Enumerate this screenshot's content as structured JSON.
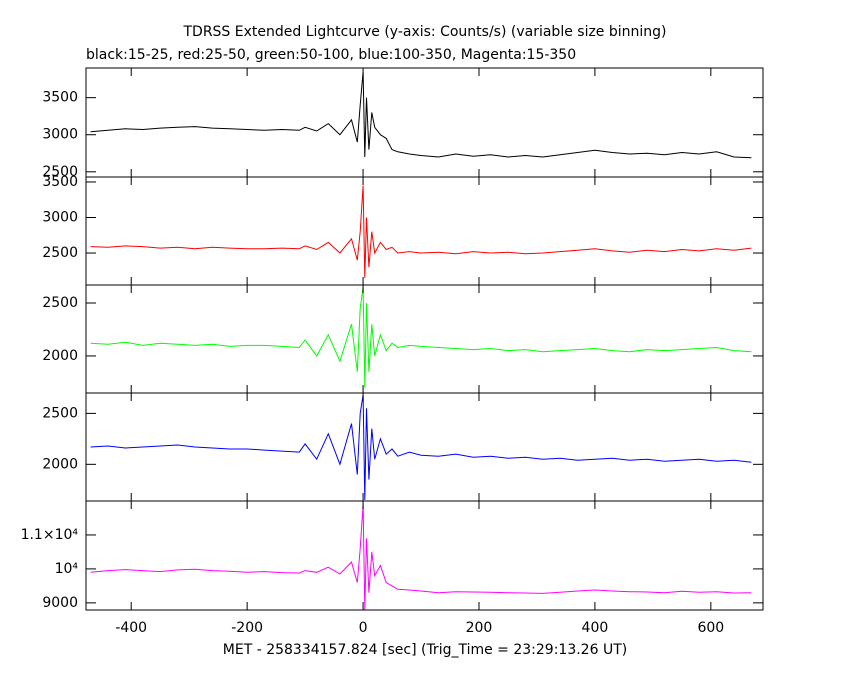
{
  "chart_data": [
    {
      "type": "line",
      "title": "TDRSS Extended Lightcurve (y-axis: Counts/s) (variable size binning)",
      "subtitle": "black:15-25, red:25-50, green:50-100, blue:100-350, Magenta:15-350",
      "color": "#000000",
      "x": [
        -470,
        -440,
        -410,
        -380,
        -350,
        -320,
        -290,
        -260,
        -230,
        -200,
        -170,
        -140,
        -110,
        -100,
        -80,
        -60,
        -40,
        -20,
        -10,
        -5,
        0,
        3,
        6,
        10,
        15,
        20,
        30,
        40,
        50,
        60,
        80,
        100,
        130,
        160,
        190,
        220,
        250,
        280,
        310,
        340,
        370,
        400,
        430,
        460,
        490,
        520,
        550,
        580,
        610,
        640,
        670
      ],
      "values": [
        3040,
        3060,
        3080,
        3070,
        3090,
        3100,
        3110,
        3090,
        3080,
        3070,
        3060,
        3070,
        3060,
        3100,
        3050,
        3150,
        3000,
        3200,
        2900,
        3400,
        3850,
        2700,
        3500,
        2800,
        3300,
        3100,
        3000,
        2950,
        2800,
        2770,
        2740,
        2720,
        2700,
        2740,
        2710,
        2730,
        2700,
        2720,
        2700,
        2730,
        2760,
        2790,
        2760,
        2740,
        2750,
        2730,
        2760,
        2740,
        2770,
        2700,
        2690
      ],
      "xlim": [
        -478,
        690
      ],
      "ylim": [
        2430,
        3900
      ],
      "yticks": [
        2500,
        3000,
        3500
      ]
    },
    {
      "type": "line",
      "color": "#ff0000",
      "x": [
        -470,
        -440,
        -410,
        -380,
        -350,
        -320,
        -290,
        -260,
        -230,
        -200,
        -170,
        -140,
        -110,
        -100,
        -80,
        -60,
        -40,
        -20,
        -10,
        -5,
        0,
        3,
        6,
        10,
        15,
        20,
        30,
        40,
        50,
        60,
        80,
        100,
        130,
        160,
        190,
        220,
        250,
        280,
        310,
        340,
        370,
        400,
        430,
        460,
        490,
        520,
        550,
        580,
        610,
        640,
        670
      ],
      "values": [
        2590,
        2580,
        2600,
        2590,
        2570,
        2580,
        2560,
        2580,
        2570,
        2560,
        2560,
        2570,
        2560,
        2600,
        2550,
        2650,
        2500,
        2700,
        2400,
        2800,
        3450,
        2150,
        3000,
        2300,
        2800,
        2500,
        2650,
        2550,
        2580,
        2500,
        2520,
        2500,
        2510,
        2490,
        2520,
        2500,
        2510,
        2490,
        2500,
        2520,
        2540,
        2560,
        2530,
        2510,
        2540,
        2520,
        2550,
        2530,
        2560,
        2540,
        2570
      ],
      "xlim": [
        -478,
        690
      ],
      "ylim": [
        2050,
        3570
      ],
      "yticks": [
        2500,
        3000,
        3500
      ]
    },
    {
      "type": "line",
      "color": "#00ff00",
      "x": [
        -470,
        -440,
        -410,
        -380,
        -350,
        -320,
        -290,
        -260,
        -230,
        -200,
        -170,
        -140,
        -110,
        -100,
        -80,
        -60,
        -40,
        -20,
        -10,
        -5,
        0,
        3,
        6,
        10,
        15,
        20,
        30,
        40,
        50,
        60,
        80,
        100,
        130,
        160,
        190,
        220,
        250,
        280,
        310,
        340,
        370,
        400,
        430,
        460,
        490,
        520,
        550,
        580,
        610,
        640,
        670
      ],
      "values": [
        2120,
        2110,
        2130,
        2100,
        2120,
        2110,
        2100,
        2110,
        2090,
        2100,
        2100,
        2090,
        2080,
        2150,
        2000,
        2200,
        1950,
        2300,
        1850,
        2450,
        2650,
        1700,
        2500,
        1850,
        2300,
        2000,
        2200,
        2050,
        2120,
        2080,
        2100,
        2090,
        2080,
        2070,
        2060,
        2070,
        2050,
        2060,
        2040,
        2050,
        2060,
        2070,
        2050,
        2040,
        2060,
        2050,
        2060,
        2070,
        2080,
        2050,
        2040
      ],
      "xlim": [
        -478,
        690
      ],
      "ylim": [
        1650,
        2670
      ],
      "yticks": [
        2000,
        2500
      ]
    },
    {
      "type": "line",
      "color": "#0000ff",
      "x": [
        -470,
        -440,
        -410,
        -380,
        -350,
        -320,
        -290,
        -260,
        -230,
        -200,
        -170,
        -140,
        -110,
        -100,
        -80,
        -60,
        -40,
        -20,
        -10,
        -5,
        0,
        3,
        6,
        10,
        15,
        20,
        30,
        40,
        50,
        60,
        80,
        100,
        130,
        160,
        190,
        220,
        250,
        280,
        310,
        340,
        370,
        400,
        430,
        460,
        490,
        520,
        550,
        580,
        610,
        640,
        670
      ],
      "values": [
        2170,
        2180,
        2160,
        2170,
        2180,
        2190,
        2170,
        2160,
        2150,
        2150,
        2140,
        2130,
        2120,
        2200,
        2050,
        2300,
        2000,
        2400,
        1900,
        2500,
        2680,
        1650,
        2550,
        1850,
        2350,
        2050,
        2250,
        2100,
        2150,
        2080,
        2120,
        2090,
        2080,
        2100,
        2070,
        2080,
        2060,
        2070,
        2050,
        2060,
        2040,
        2050,
        2060,
        2040,
        2050,
        2030,
        2040,
        2050,
        2030,
        2040,
        2020
      ],
      "xlim": [
        -478,
        690
      ],
      "ylim": [
        1640,
        2700
      ],
      "yticks": [
        2000,
        2500
      ]
    },
    {
      "type": "line",
      "color": "#ff00ff",
      "xlabel": "MET - 258334157.824 [sec] (Trig_Time = 23:29:13.26 UT)",
      "x": [
        -470,
        -440,
        -410,
        -380,
        -350,
        -320,
        -290,
        -260,
        -230,
        -200,
        -170,
        -140,
        -110,
        -100,
        -80,
        -60,
        -40,
        -20,
        -10,
        -5,
        0,
        3,
        6,
        10,
        15,
        20,
        30,
        40,
        50,
        60,
        80,
        100,
        130,
        160,
        190,
        220,
        250,
        280,
        310,
        340,
        370,
        400,
        430,
        460,
        490,
        520,
        550,
        580,
        610,
        640,
        670
      ],
      "values": [
        9900,
        9950,
        9980,
        9950,
        9920,
        9970,
        9990,
        9950,
        9930,
        9900,
        9920,
        9890,
        9880,
        9950,
        9900,
        10050,
        9850,
        10200,
        9600,
        10600,
        11900,
        8800,
        10900,
        9300,
        10500,
        9800,
        10100,
        9600,
        9500,
        9400,
        9380,
        9350,
        9300,
        9330,
        9320,
        9310,
        9300,
        9290,
        9280,
        9310,
        9350,
        9380,
        9350,
        9330,
        9320,
        9300,
        9340,
        9310,
        9330,
        9290,
        9300
      ],
      "xlim": [
        -478,
        690
      ],
      "ylim": [
        8790,
        12000
      ],
      "yticks": [
        9000,
        {
          "value": 10000,
          "label": "10⁴"
        },
        {
          "value": 11000,
          "label": "1.1×10⁴"
        }
      ],
      "xticks": [
        -400,
        -200,
        0,
        200,
        400,
        600
      ]
    }
  ]
}
